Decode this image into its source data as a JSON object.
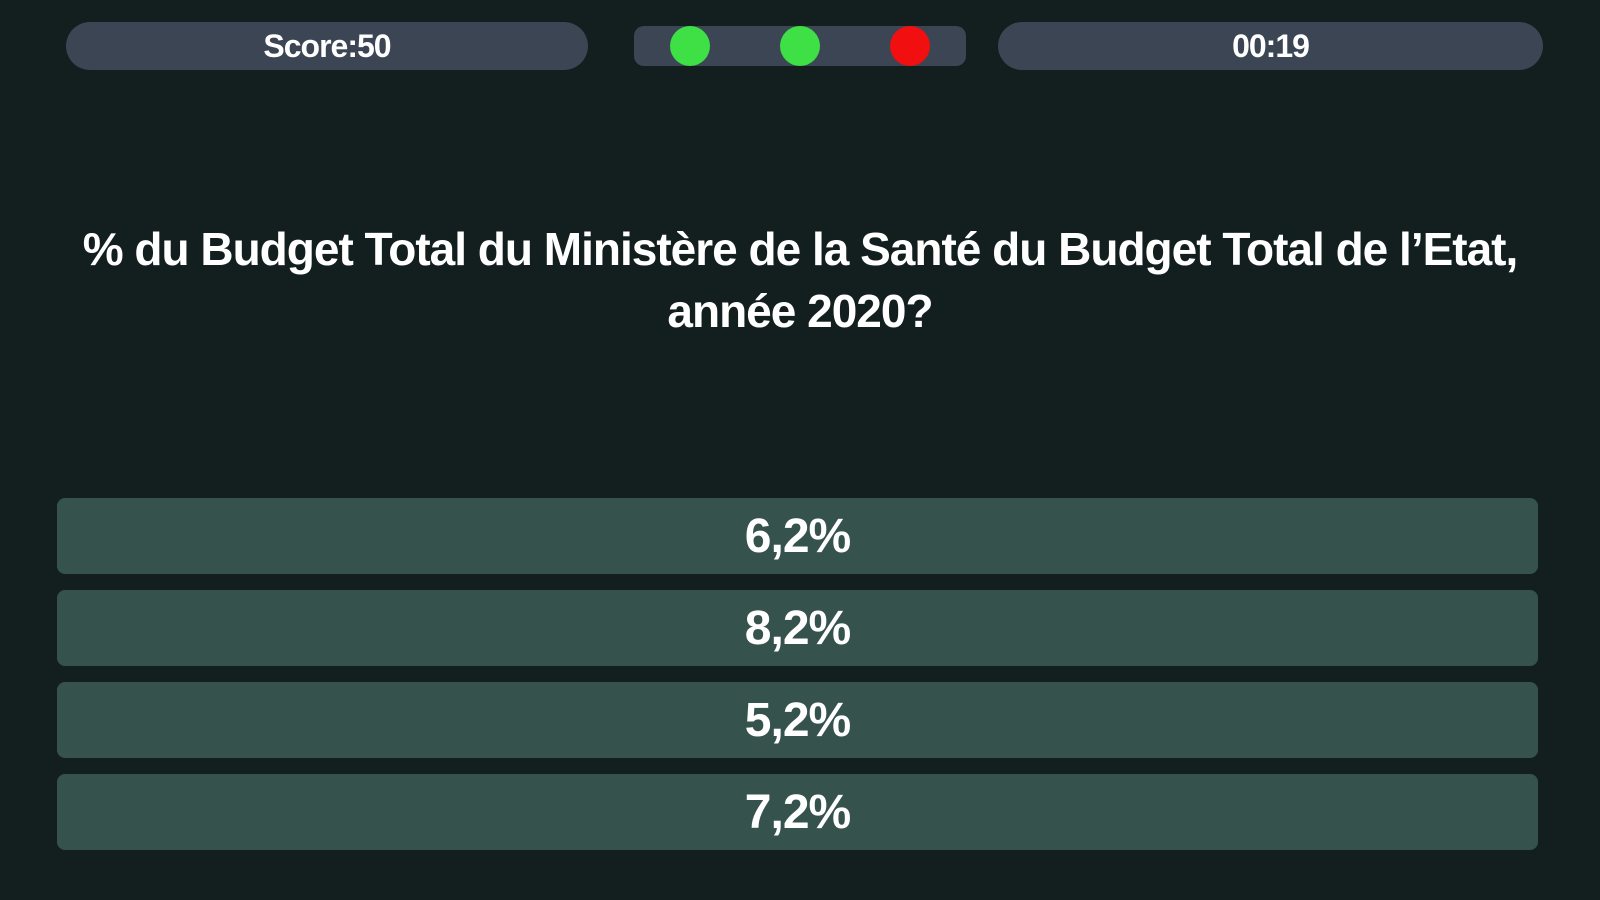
{
  "hud": {
    "score_label": "Score:50",
    "timer": "00:19",
    "lives": [
      {
        "status": "correct",
        "color": "#3ee045"
      },
      {
        "status": "correct",
        "color": "#3ee045"
      },
      {
        "status": "wrong",
        "color": "#f20f0f"
      }
    ]
  },
  "question": {
    "text": "% du Budget Total du Ministère de la Santé du Budget Total de l’Etat, année 2020?"
  },
  "answers": [
    {
      "label": "6,2%"
    },
    {
      "label": "8,2%"
    },
    {
      "label": "5,2%"
    },
    {
      "label": "7,2%"
    }
  ],
  "colors": {
    "background": "#131f1e",
    "hud_pill": "#3b4554",
    "answer_button": "#36524c",
    "text": "#ffffff"
  }
}
